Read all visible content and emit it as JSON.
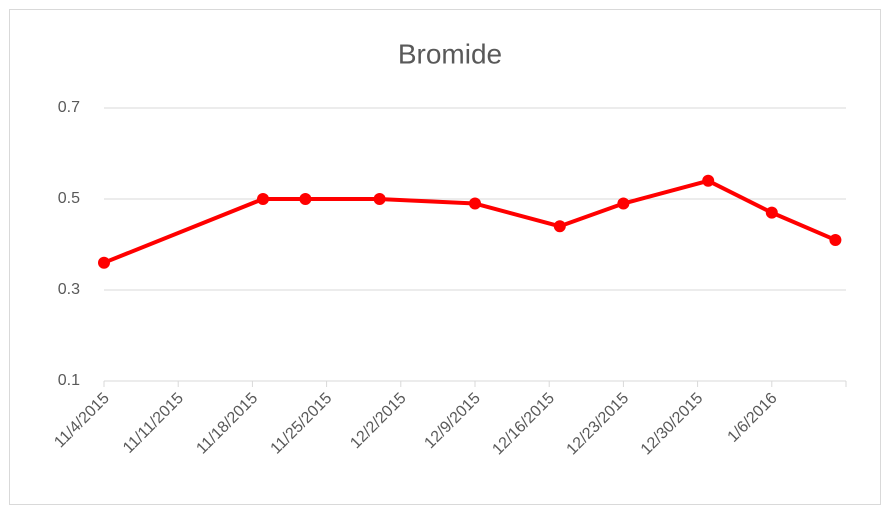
{
  "chart_data": {
    "type": "line",
    "title": "Bromide",
    "x": [
      "11/4/2015",
      "11/19/2015",
      "11/23/2015",
      "11/30/2015",
      "12/9/2015",
      "12/17/2015",
      "12/23/2015",
      "12/31/2015",
      "1/6/2016",
      "1/12/2016"
    ],
    "series": [
      {
        "name": "Bromide",
        "color": "#ff0000",
        "values": [
          0.36,
          0.5,
          0.5,
          0.5,
          0.49,
          0.44,
          0.49,
          0.54,
          0.47,
          0.41
        ]
      }
    ],
    "xlim": [
      "11/4/2015",
      "1/13/2016"
    ],
    "xticks": [
      "11/4/2015",
      "11/11/2015",
      "11/18/2015",
      "11/25/2015",
      "12/2/2015",
      "12/9/2015",
      "12/16/2015",
      "12/23/2015",
      "12/30/2015",
      "1/6/2016"
    ],
    "ylim": [
      0.1,
      0.7
    ],
    "yticks": [
      0.1,
      0.3,
      0.5,
      0.7
    ],
    "grid": true
  }
}
